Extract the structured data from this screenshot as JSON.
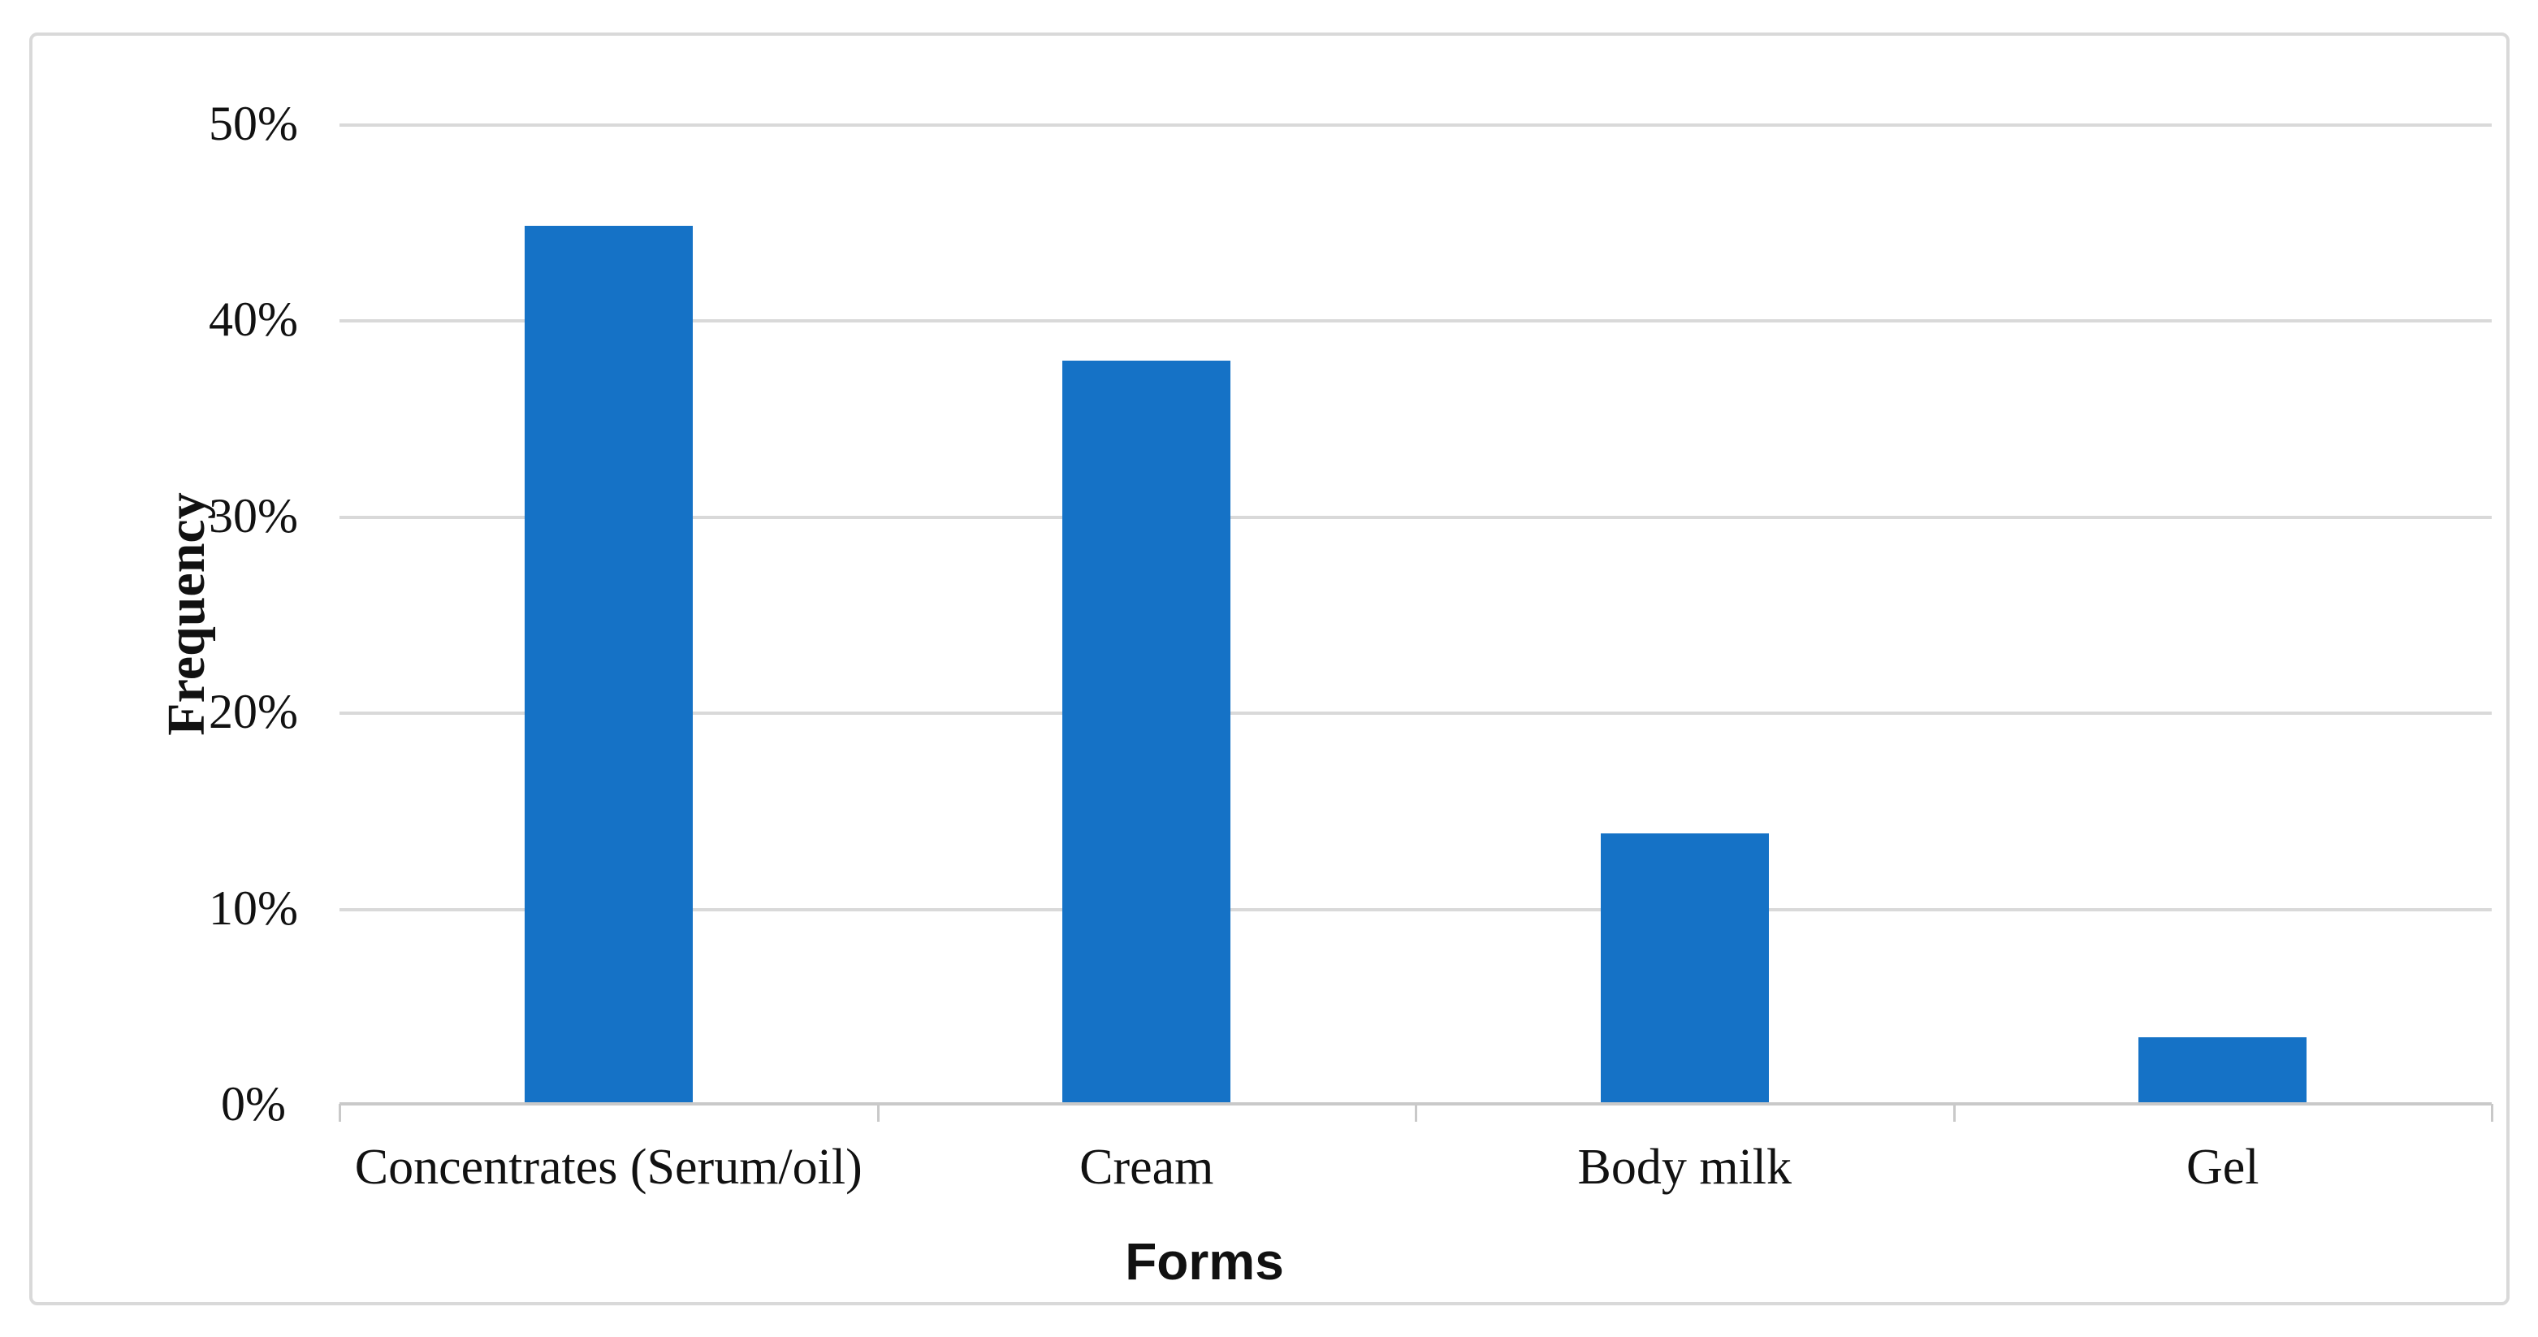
{
  "chart_data": {
    "type": "bar",
    "categories": [
      "Concentrates (Serum/oil)",
      "Cream",
      "Body milk",
      "Gel"
    ],
    "values": [
      44.8,
      37.9,
      13.8,
      3.4
    ],
    "title": "",
    "xlabel": "Forms",
    "ylabel": "Frequency",
    "ylim": [
      0,
      50
    ],
    "ytick_step": 10,
    "ytick_labels": [
      "0%",
      "10%",
      "20%",
      "30%",
      "40%",
      "50%"
    ],
    "grid": true,
    "legend": false,
    "colors": {
      "bar": "#1572C6",
      "gridline": "#D9D9D9",
      "axis": "#C9C9C9",
      "text": "#111111",
      "frame_border": "#D9D9D9",
      "background": "#FFFFFF"
    }
  }
}
